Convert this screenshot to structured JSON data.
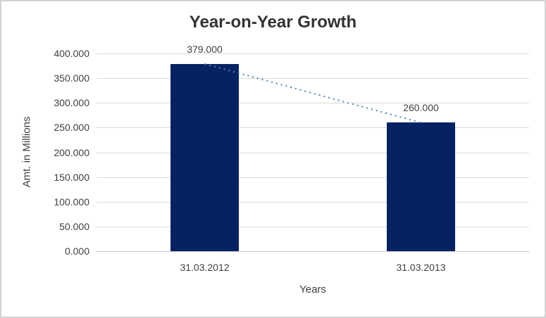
{
  "frame": {
    "background": "#FFFFFF",
    "border_color": "#D2D2D2"
  },
  "chart_data": {
    "type": "bar",
    "title": "Year-on-Year Growth",
    "xlabel": "Years",
    "ylabel": "Amt. in Millions",
    "categories": [
      "31.03.2012",
      "31.03.2013"
    ],
    "values": [
      379,
      260
    ],
    "data_labels": [
      "379.000",
      "260.000"
    ],
    "ylim": [
      0,
      400
    ],
    "ytick_values": [
      0,
      50,
      100,
      150,
      200,
      250,
      300,
      350,
      400
    ],
    "ytick_labels": [
      "0.000",
      "50.000",
      "100.000",
      "150.000",
      "200.000",
      "250.000",
      "300.000",
      "350.000",
      "400.000"
    ],
    "grid": true,
    "legend": "none",
    "bar_color": "#062263",
    "trendline": {
      "type": "linear",
      "style": "dotted",
      "color": "#4E81BD"
    },
    "colors": {
      "gridline": "#DADADA",
      "axis_line": "#C6C6C6",
      "label_text": "#3F3F3F",
      "title_text": "#333333"
    }
  }
}
